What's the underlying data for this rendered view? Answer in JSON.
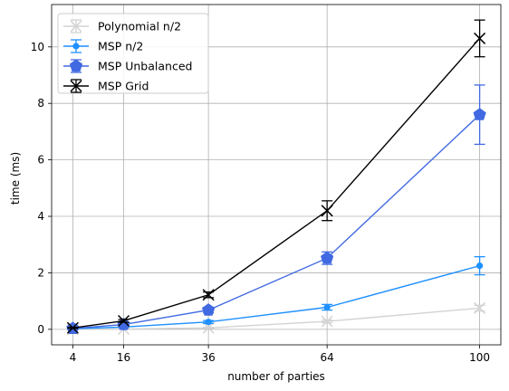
{
  "chart_data": {
    "type": "line",
    "xlabel": "number of parties",
    "ylabel": "time (ms)",
    "x": [
      4,
      16,
      36,
      64,
      100
    ],
    "xticks": [
      "4",
      "16",
      "36",
      "64",
      "100"
    ],
    "yticks": [
      "0",
      "2",
      "4",
      "6",
      "8",
      "10"
    ],
    "xlim": [
      -1,
      105
    ],
    "ylim": [
      -0.55,
      11.5
    ],
    "grid": true,
    "legend_position": "top-left",
    "series": [
      {
        "name": "Polynomial n/2",
        "color": "#d3d3d3",
        "marker": "x",
        "values": [
          0.0,
          0.01,
          0.05,
          0.28,
          0.75
        ],
        "err": [
          0.01,
          0.01,
          0.02,
          0.05,
          0.1
        ]
      },
      {
        "name": "MSP n/2",
        "color": "#1e90ff",
        "marker": "dot",
        "values": [
          0.02,
          0.08,
          0.26,
          0.78,
          2.25
        ],
        "err": [
          0.01,
          0.02,
          0.05,
          0.1,
          0.32
        ]
      },
      {
        "name": "MSP Unbalanced",
        "color": "#4169e1",
        "marker": "pentagon",
        "values": [
          0.03,
          0.17,
          0.68,
          2.52,
          7.6
        ],
        "err": [
          0.01,
          0.05,
          0.1,
          0.22,
          1.05
        ]
      },
      {
        "name": "MSP Grid",
        "color": "#000000",
        "marker": "x",
        "values": [
          0.05,
          0.3,
          1.22,
          4.2,
          10.3
        ],
        "err": [
          0.02,
          0.05,
          0.1,
          0.35,
          0.65
        ]
      }
    ]
  }
}
